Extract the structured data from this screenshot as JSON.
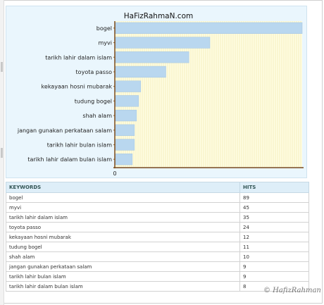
{
  "chart_data": {
    "type": "bar",
    "orientation": "horizontal",
    "title": "HaFizRahmaN.com",
    "categories": [
      "bogel",
      "myvi",
      "tarikh lahir dalam islam",
      "toyota passo",
      "kekayaan hosni mubarak",
      "tudung bogel",
      "shah alam",
      "jangan gunakan perkataan salam",
      "tarikh lahir bulan islam",
      "tarikh lahir dalam bulan islam"
    ],
    "values": [
      89,
      45,
      35,
      24,
      12,
      11,
      10,
      9,
      9,
      8
    ],
    "x_tick_labels": [
      "0"
    ],
    "xlim": [
      0,
      89
    ],
    "grid": true,
    "bar_color": "#b9d7ef",
    "background": "#eaf6fd"
  },
  "table": {
    "headers": [
      "KEYWORDS",
      "HITS"
    ],
    "rows": [
      [
        "bogel",
        "89"
      ],
      [
        "myvi",
        "45"
      ],
      [
        "tarikh lahir dalam islam",
        "35"
      ],
      [
        "toyota passo",
        "24"
      ],
      [
        "kekayaan hosni mubarak",
        "12"
      ],
      [
        "tudung bogel",
        "11"
      ],
      [
        "shah alam",
        "10"
      ],
      [
        "jangan gunakan perkataan salam",
        "9"
      ],
      [
        "tarikh lahir bulan islam",
        "9"
      ],
      [
        "tarikh lahir dalam bulan islam",
        "8"
      ]
    ]
  },
  "watermark": "© HafizRahman"
}
